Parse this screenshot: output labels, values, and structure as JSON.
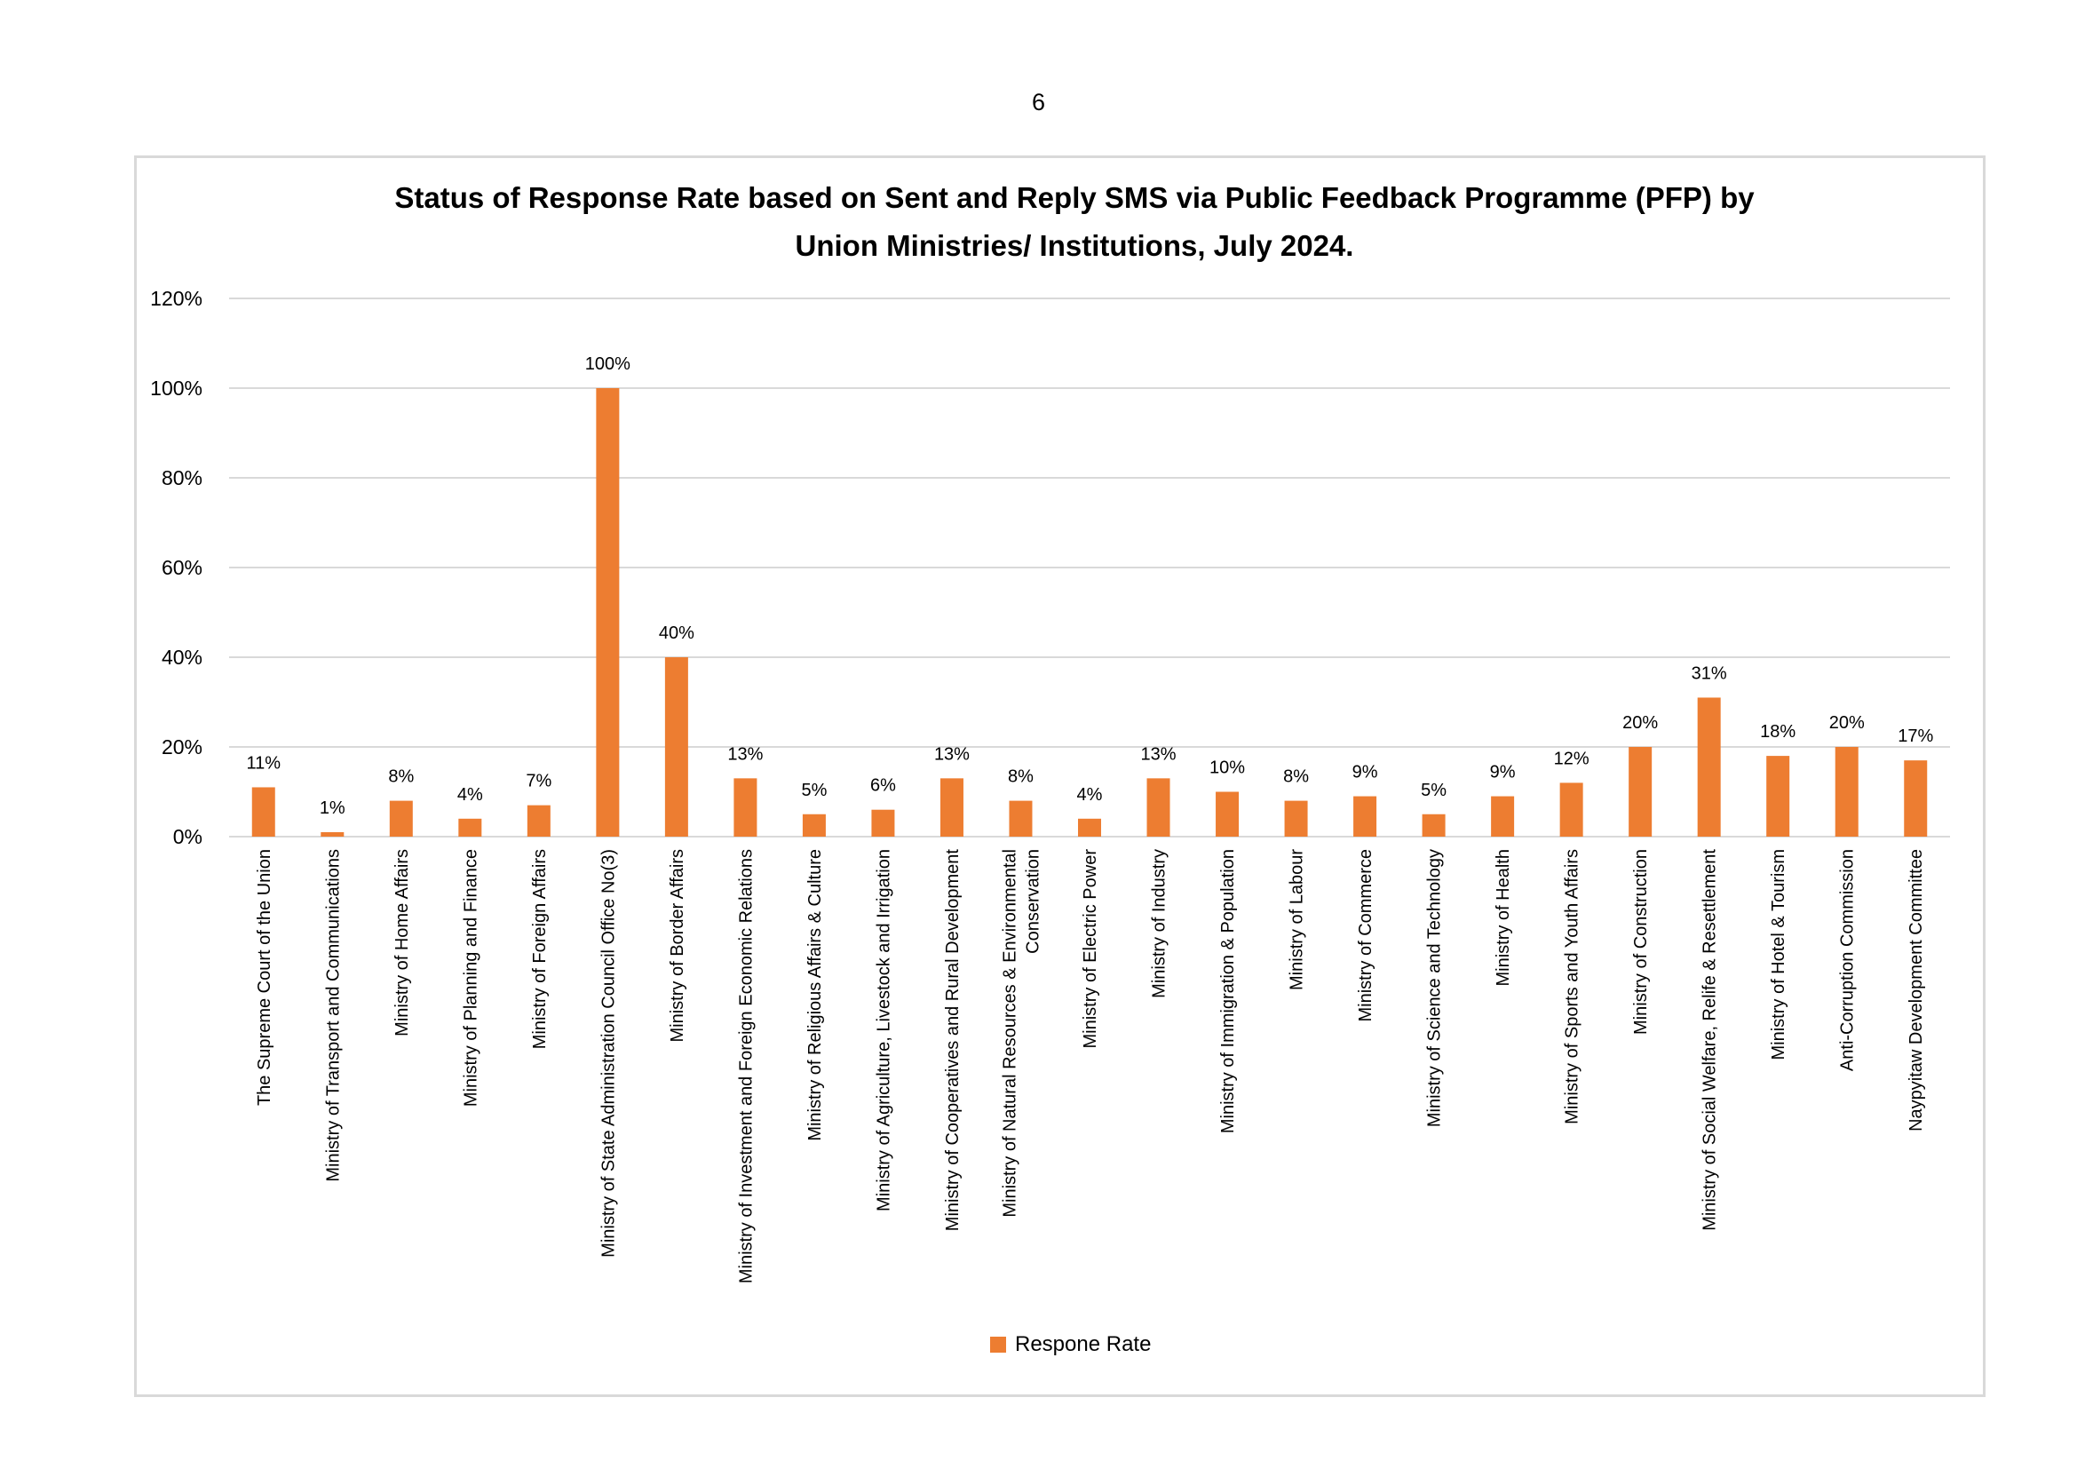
{
  "page_number": "6",
  "colors": {
    "bar": "#ed7d31",
    "grid": "#d9d9d9",
    "text": "#000000"
  },
  "chart_data": {
    "type": "bar",
    "title_line1": "Status of Response Rate based on Sent and Reply SMS via Public Feedback Programme (PFP) by",
    "title_line2": "Union Ministries/ Institutions, July 2024.",
    "ylim": [
      0,
      120
    ],
    "y_ticks": [
      0,
      20,
      40,
      60,
      80,
      100,
      120
    ],
    "y_tick_labels": [
      "0%",
      "20%",
      "40%",
      "60%",
      "80%",
      "100%",
      "120%"
    ],
    "grid": true,
    "legend_position": "bottom",
    "categories": [
      [
        "The Supreme Court of the Union"
      ],
      [
        "Ministry of Transport and Communications"
      ],
      [
        "Ministry of Home Affairs"
      ],
      [
        "Ministry of Planning and Finance"
      ],
      [
        "Ministry of Foreign Affairs"
      ],
      [
        "Ministry of State Administration Council Office No(3)"
      ],
      [
        "Ministry of Border Affairs"
      ],
      [
        "Ministry of Investment and Foreign Economic Relations"
      ],
      [
        "Ministry of Religious Affairs & Culture"
      ],
      [
        "Ministry of Agriculture, Livestock and Irrigation"
      ],
      [
        "Ministry of Cooperatives and Rural Development"
      ],
      [
        "Ministry of Natural Resources & Environmental",
        "Conservation"
      ],
      [
        "Ministry of Electric Power"
      ],
      [
        "Ministry of Industry"
      ],
      [
        "Ministry of Immigration & Population"
      ],
      [
        "Ministry of Labour"
      ],
      [
        "Ministry of Commerce"
      ],
      [
        "Ministry of Science and Technology"
      ],
      [
        "Ministry of Health"
      ],
      [
        "Ministry of Sports and Youth Affairs"
      ],
      [
        "Ministry of Construction"
      ],
      [
        "Ministry of Social Welfare, Relife & Resettlement"
      ],
      [
        "Ministry of Hotel & Tourism"
      ],
      [
        "Anti-Corruption Commission"
      ],
      [
        "Naypyitaw Development Committee"
      ]
    ],
    "series": [
      {
        "name": "Respone Rate",
        "values": [
          11,
          1,
          8,
          4,
          7,
          100,
          40,
          13,
          5,
          6,
          13,
          8,
          4,
          13,
          10,
          8,
          9,
          5,
          9,
          12,
          20,
          31,
          18,
          20,
          17
        ],
        "labels": [
          "11%",
          "1%",
          "8%",
          "4%",
          "7%",
          "100%",
          "40%",
          "13%",
          "5%",
          "6%",
          "13%",
          "8%",
          "4%",
          "13%",
          "10%",
          "8%",
          "9%",
          "5%",
          "9%",
          "12%",
          "20%",
          "31%",
          "18%",
          "20%",
          "17%"
        ]
      }
    ]
  }
}
